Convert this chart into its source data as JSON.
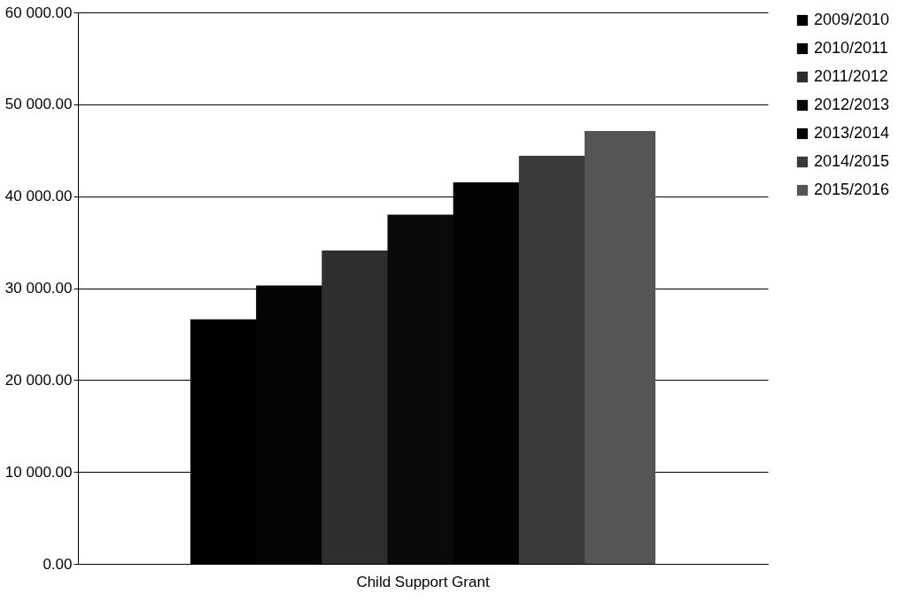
{
  "chart_data": {
    "type": "bar",
    "categories": [
      "Child Support Grant"
    ],
    "series": [
      {
        "name": "2009/2010",
        "color": "#000000",
        "values": [
          26600
        ]
      },
      {
        "name": "2010/2011",
        "color": "#050505",
        "values": [
          30300
        ]
      },
      {
        "name": "2011/2012",
        "color": "#2e2e2e",
        "values": [
          34100
        ]
      },
      {
        "name": "2012/2013",
        "color": "#0a0a0a",
        "values": [
          38000
        ]
      },
      {
        "name": "2013/2014",
        "color": "#030303",
        "values": [
          41500
        ]
      },
      {
        "name": "2014/2015",
        "color": "#3a3a3a",
        "values": [
          44400
        ]
      },
      {
        "name": "2015/2016",
        "color": "#555555",
        "values": [
          47100
        ]
      }
    ],
    "ylim": [
      0,
      60000
    ],
    "yticks": [
      {
        "value": 0,
        "label": "0.00"
      },
      {
        "value": 10000,
        "label": "10 000.00"
      },
      {
        "value": 20000,
        "label": "20 000.00"
      },
      {
        "value": 30000,
        "label": "30 000.00"
      },
      {
        "value": 40000,
        "label": "40 000.00"
      },
      {
        "value": 50000,
        "label": "50 000.00"
      },
      {
        "value": 60000,
        "label": "60 000.00"
      }
    ],
    "grid": "y",
    "legend": "right"
  }
}
